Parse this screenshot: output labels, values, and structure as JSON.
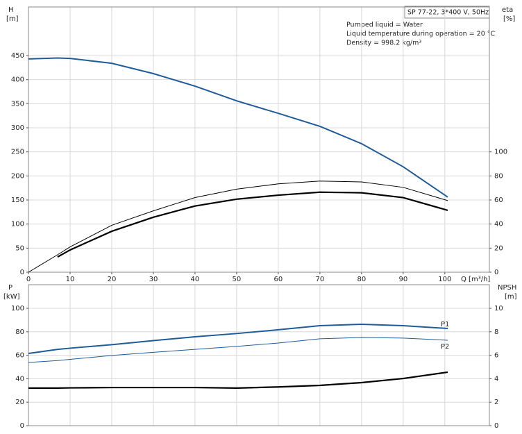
{
  "chart_data": [
    {
      "type": "line",
      "ylabel": "H",
      "yunit": "[m]",
      "y2label": "eta",
      "y2unit": "[%]",
      "xlabel": "Q [m³/h]",
      "info_box": "SP 77-22, 3*400 V, 50Hz",
      "annotations": [
        "Pumped liquid = Water",
        "Liquid temperature during operation = 20 °C",
        "Density = 998.2 kg/m³"
      ],
      "x": [
        0,
        7,
        10,
        20,
        30,
        40,
        50,
        60,
        70,
        80,
        90,
        100.7
      ],
      "xlim": [
        0,
        110.7
      ],
      "xticks": [
        0,
        10,
        20,
        30,
        40,
        50,
        60,
        70,
        80,
        90,
        100
      ],
      "ylim": [
        0,
        551
      ],
      "yticks": [
        0,
        50,
        100,
        150,
        200,
        250,
        300,
        350,
        400,
        450
      ],
      "y2lim": [
        0,
        220.4
      ],
      "y2ticks": [
        0,
        20,
        40,
        60,
        80,
        100
      ],
      "grid": true,
      "series": [
        {
          "color": "#1f5b99",
          "line_width": 2,
          "values": [
            443,
            445,
            444,
            434,
            412.5,
            386.5,
            356,
            330,
            303,
            267,
            219,
            156
          ]
        },
        {
          "color": "#000000",
          "line_width": 1,
          "axis": "y2",
          "values": [
            0,
            14.5,
            21,
            39,
            51,
            62,
            69,
            73.4,
            75.7,
            75,
            70.5,
            59.5
          ]
        },
        {
          "color": "#000000",
          "line_width": 2.2,
          "axis": "y2",
          "values": [
            null,
            12.7,
            18.5,
            34,
            45.7,
            55,
            60.7,
            64,
            66.5,
            66,
            62,
            51.4
          ]
        }
      ]
    },
    {
      "type": "line",
      "ylabel": "P",
      "yunit": "[kW]",
      "y2label": "NPSH",
      "y2unit": "[m]",
      "x": [
        0,
        7,
        10,
        20,
        30,
        40,
        50,
        60,
        70,
        80,
        90,
        100.7
      ],
      "xlim": [
        0,
        110.7
      ],
      "ylim": [
        0,
        120.1
      ],
      "yticks": [
        0,
        20,
        40,
        60,
        80,
        100
      ],
      "y2lim": [
        0,
        12.01
      ],
      "y2ticks": [
        0,
        2,
        4,
        6,
        8,
        10
      ],
      "grid": true,
      "series": [
        {
          "name": "P1",
          "color": "#1f5b99",
          "line_width": 2,
          "values": [
            61.5,
            65,
            66,
            69,
            72.5,
            75.7,
            78.5,
            81.7,
            85.2,
            86.4,
            85.2,
            82.8
          ]
        },
        {
          "name": "P2",
          "color": "#1f5b99",
          "line_width": 1,
          "values": [
            53.8,
            55.5,
            56.5,
            59.8,
            62.5,
            65,
            67.5,
            70.4,
            74,
            75.1,
            74.6,
            72.8
          ]
        },
        {
          "color": "#000000",
          "line_width": 2.2,
          "axis": "y2",
          "values": [
            3.2,
            3.2,
            3.22,
            3.25,
            3.25,
            3.25,
            3.2,
            3.3,
            3.43,
            3.67,
            4.02,
            4.56
          ]
        }
      ]
    }
  ]
}
